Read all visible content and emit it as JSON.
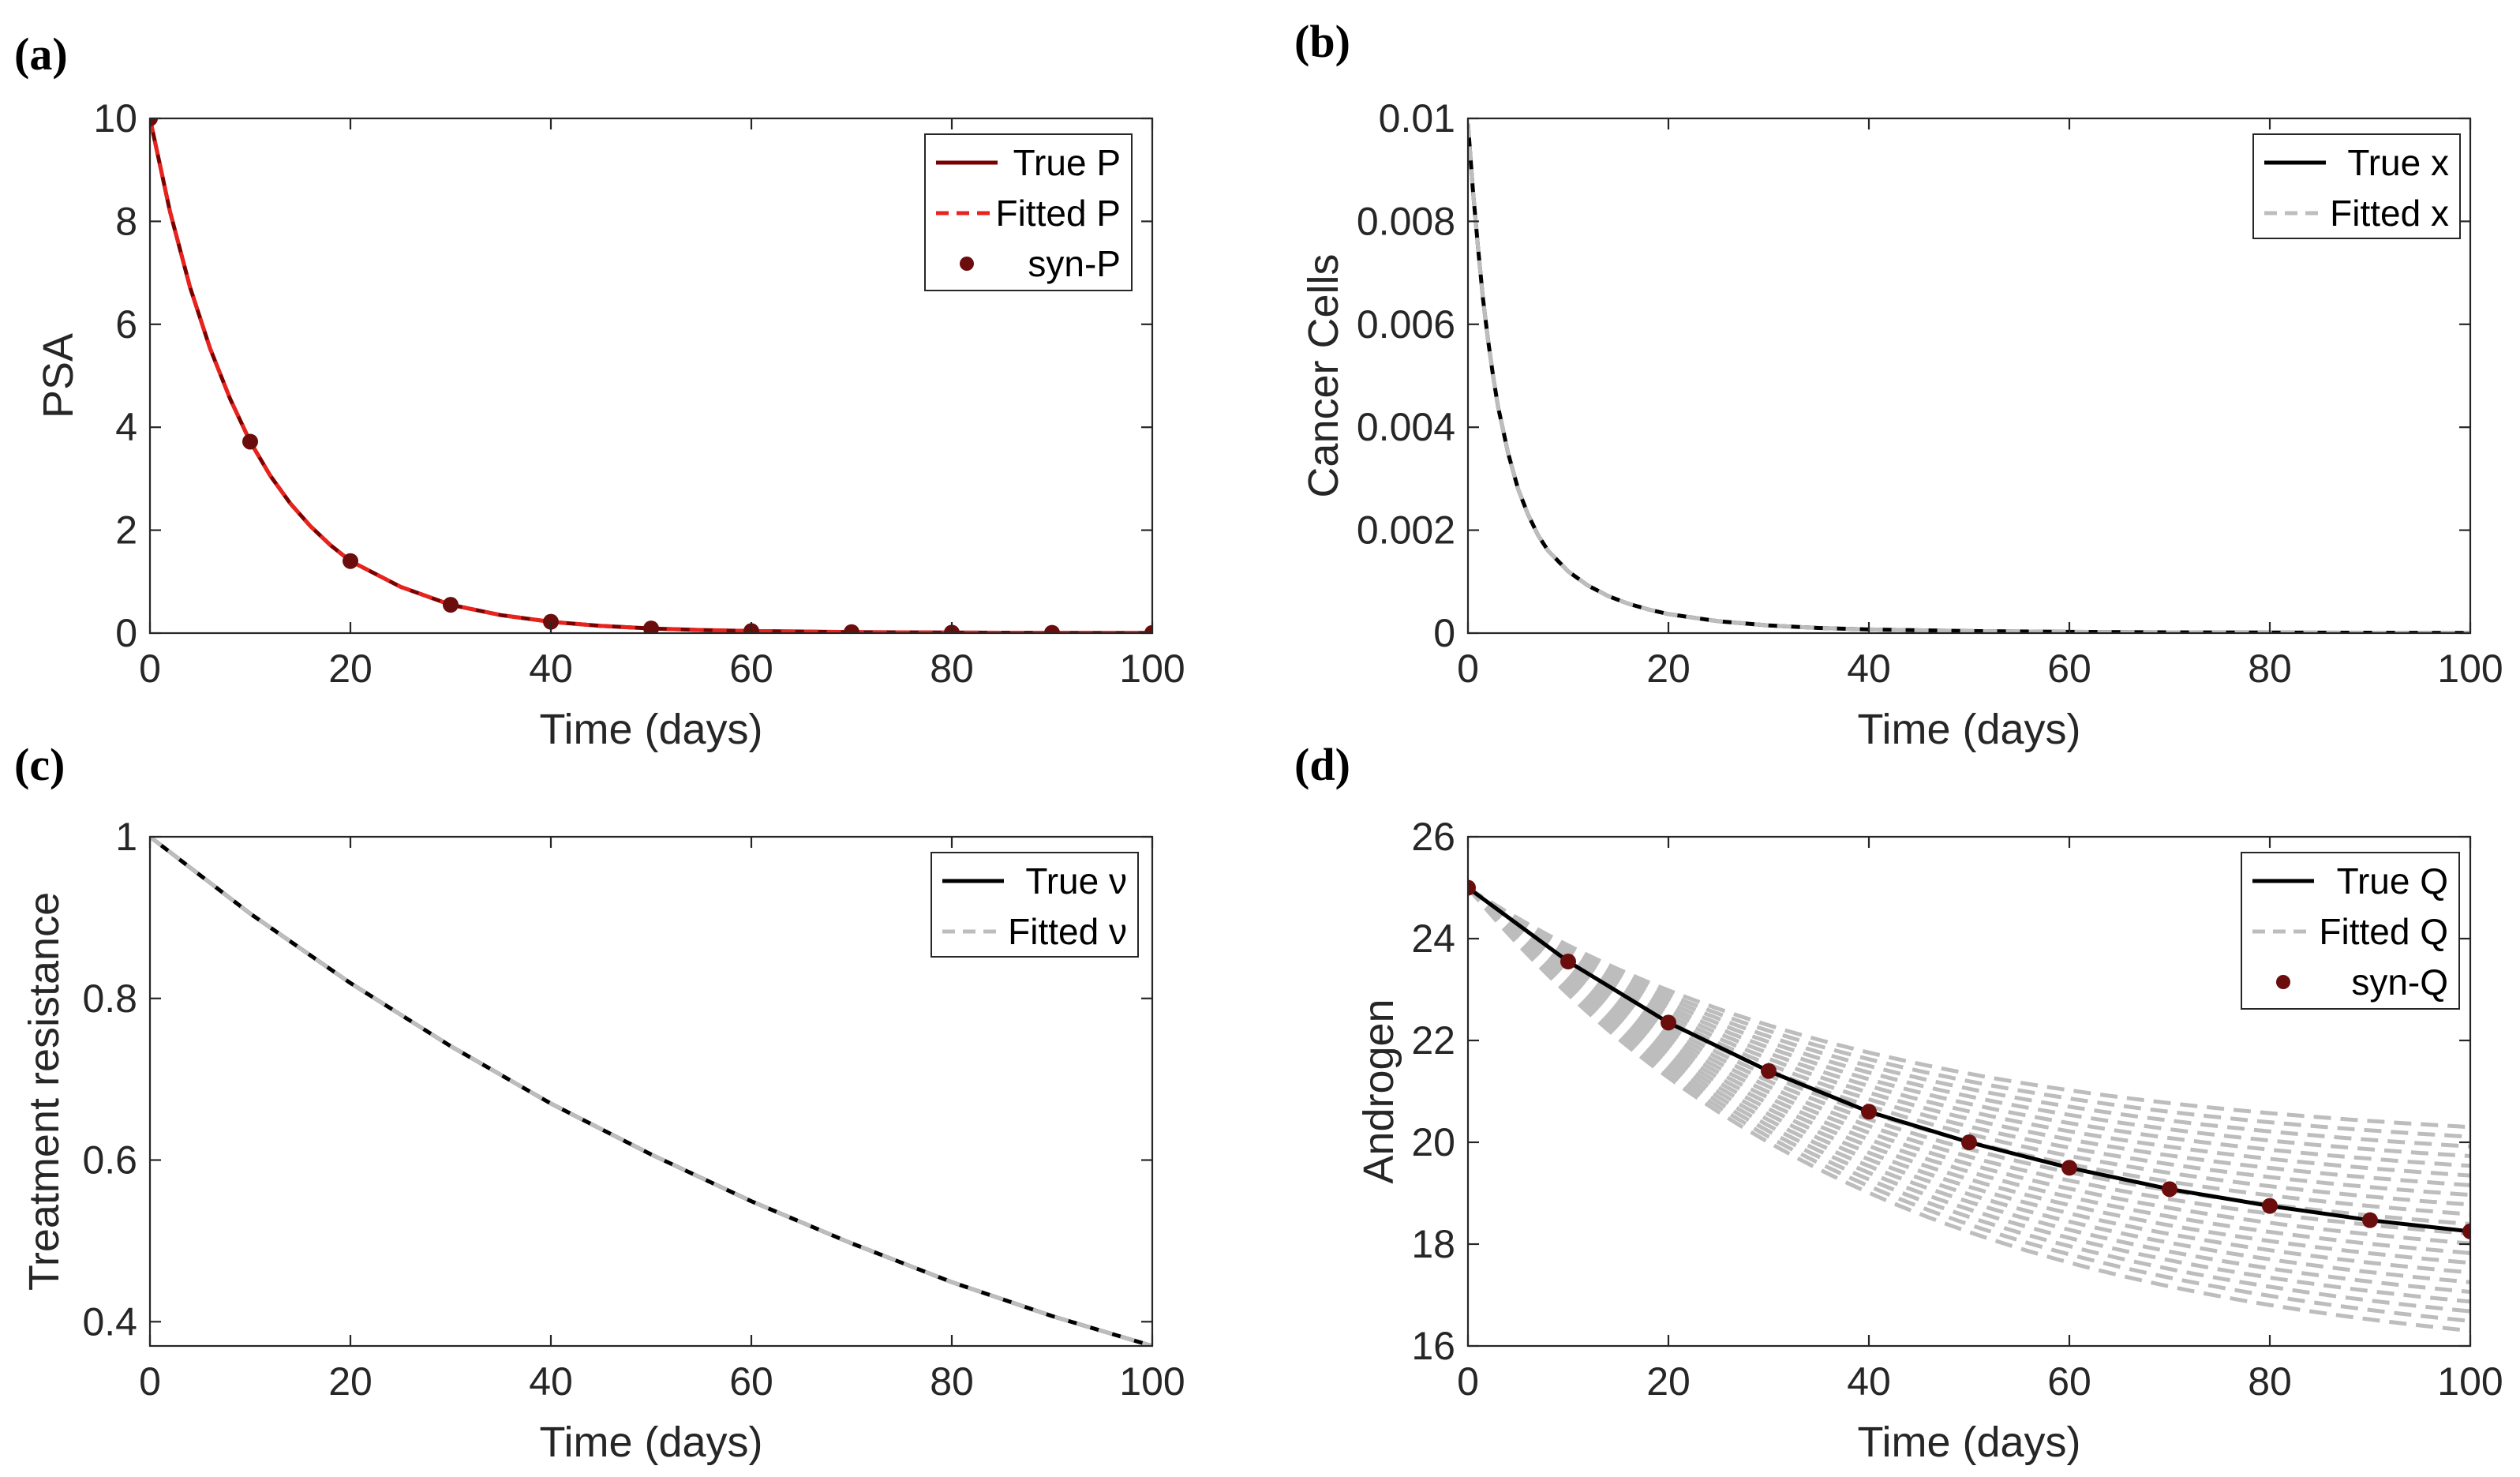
{
  "chart_data": [
    {
      "id": "a",
      "panel_label": "(a)",
      "type": "line",
      "xlabel": "Time (days)",
      "ylabel": "PSA",
      "xlim": [
        0,
        100
      ],
      "ylim": [
        0,
        10
      ],
      "xticks": [
        0,
        20,
        40,
        60,
        80,
        100
      ],
      "yticks": [
        0,
        2,
        4,
        6,
        8,
        10
      ],
      "ytick_labels": [
        "0",
        "2",
        "4",
        "6",
        "8",
        "10"
      ],
      "legend_position": "top-right",
      "series": [
        {
          "name": "True P",
          "label": "True P",
          "style": "solid",
          "color": "#7a0000",
          "x": [
            0,
            2,
            4,
            6,
            8,
            10,
            12,
            14,
            16,
            18,
            20,
            25,
            30,
            35,
            40,
            45,
            50,
            55,
            60,
            65,
            70,
            75,
            80,
            85,
            90,
            95,
            100
          ],
          "y": [
            10,
            8.19,
            6.72,
            5.53,
            4.55,
            3.72,
            3.06,
            2.52,
            2.08,
            1.71,
            1.4,
            0.9,
            0.55,
            0.35,
            0.22,
            0.14,
            0.09,
            0.06,
            0.04,
            0.03,
            0.02,
            0.015,
            0.01,
            0.008,
            0.006,
            0.005,
            0.004
          ]
        },
        {
          "name": "Fitted P",
          "label": "Fitted P",
          "style": "dashed",
          "color": "#e8231d",
          "x": [
            0,
            2,
            4,
            6,
            8,
            10,
            12,
            14,
            16,
            18,
            20,
            25,
            30,
            35,
            40,
            45,
            50,
            55,
            60,
            65,
            70,
            75,
            80,
            85,
            90,
            95,
            100
          ],
          "y": [
            10,
            8.19,
            6.72,
            5.53,
            4.55,
            3.72,
            3.06,
            2.52,
            2.08,
            1.71,
            1.4,
            0.9,
            0.55,
            0.35,
            0.22,
            0.14,
            0.09,
            0.06,
            0.04,
            0.03,
            0.02,
            0.015,
            0.01,
            0.008,
            0.006,
            0.005,
            0.004
          ]
        },
        {
          "name": "syn-P",
          "label": "syn-P",
          "style": "marker",
          "color": "#6b0d0d",
          "x": [
            0,
            10,
            20,
            30,
            40,
            50,
            60,
            70,
            80,
            90,
            100
          ],
          "y": [
            10,
            3.72,
            1.4,
            0.55,
            0.22,
            0.09,
            0.04,
            0.02,
            0.01,
            0.006,
            0.004
          ]
        }
      ]
    },
    {
      "id": "b",
      "panel_label": "(b)",
      "type": "line",
      "xlabel": "Time (days)",
      "ylabel": "Cancer Cells",
      "xlim": [
        0,
        100
      ],
      "ylim": [
        0,
        0.01
      ],
      "xticks": [
        0,
        20,
        40,
        60,
        80,
        100
      ],
      "yticks": [
        0,
        0.002,
        0.004,
        0.006,
        0.008,
        0.01
      ],
      "ytick_labels": [
        "0",
        "0.002",
        "0.004",
        "0.006",
        "0.008",
        "0.01"
      ],
      "legend_position": "top-right",
      "series": [
        {
          "name": "True x",
          "label": "True x",
          "style": "solid",
          "color": "#000000",
          "x": [
            0,
            0.5,
            1,
            1.5,
            2,
            2.5,
            3,
            4,
            5,
            6,
            7,
            8,
            10,
            12,
            14,
            16,
            18,
            20,
            25,
            30,
            35,
            40,
            50,
            60,
            70,
            80,
            90,
            100
          ],
          "y": [
            0.0099,
            0.0086,
            0.0075,
            0.0065,
            0.0057,
            0.005,
            0.0044,
            0.0035,
            0.0028,
            0.0023,
            0.0019,
            0.0016,
            0.0012,
            0.00092,
            0.00072,
            0.00057,
            0.00046,
            0.00037,
            0.00023,
            0.00015,
            0.0001,
            7e-05,
            4e-05,
            2.5e-05,
            1.6e-05,
            1e-05,
            7e-06,
            5e-06
          ]
        },
        {
          "name": "Fitted x",
          "label": "Fitted x",
          "style": "dashed",
          "color": "#bdbdbd",
          "x": [
            0,
            0.5,
            1,
            1.5,
            2,
            2.5,
            3,
            4,
            5,
            6,
            7,
            8,
            10,
            12,
            14,
            16,
            18,
            20,
            25,
            30,
            35,
            40,
            50,
            60,
            70,
            80,
            90,
            100
          ],
          "y": [
            0.0099,
            0.0086,
            0.0075,
            0.0065,
            0.0057,
            0.005,
            0.0044,
            0.0035,
            0.0028,
            0.0023,
            0.0019,
            0.0016,
            0.0012,
            0.00092,
            0.00072,
            0.00057,
            0.00046,
            0.00037,
            0.00023,
            0.00015,
            0.0001,
            7e-05,
            4e-05,
            2.5e-05,
            1.6e-05,
            1e-05,
            7e-06,
            5e-06
          ]
        }
      ]
    },
    {
      "id": "c",
      "panel_label": "(c)",
      "type": "line",
      "xlabel": "Time (days)",
      "ylabel": "Treatment resistance",
      "xlim": [
        0,
        100
      ],
      "ylim": [
        0.37,
        1
      ],
      "xticks": [
        0,
        20,
        40,
        60,
        80,
        100
      ],
      "yticks": [
        0.4,
        0.6,
        0.8,
        1
      ],
      "ytick_labels": [
        "0.4",
        "0.6",
        "0.8",
        "1"
      ],
      "legend_position": "top-right",
      "series": [
        {
          "name": "True ν",
          "label": "True ν",
          "style": "solid",
          "color": "#000000",
          "x": [
            0,
            10,
            20,
            30,
            40,
            50,
            60,
            70,
            80,
            90,
            100
          ],
          "y": [
            1,
            0.905,
            0.819,
            0.741,
            0.67,
            0.607,
            0.549,
            0.497,
            0.449,
            0.407,
            0.37
          ]
        },
        {
          "name": "Fitted ν",
          "label": "Fitted ν",
          "style": "dashed",
          "color": "#bdbdbd",
          "x": [
            0,
            10,
            20,
            30,
            40,
            50,
            60,
            70,
            80,
            90,
            100
          ],
          "y": [
            1,
            0.905,
            0.819,
            0.741,
            0.67,
            0.607,
            0.549,
            0.497,
            0.449,
            0.407,
            0.37
          ]
        }
      ]
    },
    {
      "id": "d",
      "panel_label": "(d)",
      "type": "line",
      "xlabel": "Time (days)",
      "ylabel": "Androgen",
      "xlim": [
        0,
        100
      ],
      "ylim": [
        16,
        26
      ],
      "xticks": [
        0,
        20,
        40,
        60,
        80,
        100
      ],
      "yticks": [
        16,
        18,
        20,
        22,
        24,
        26
      ],
      "ytick_labels": [
        "16",
        "18",
        "20",
        "22",
        "24",
        "26"
      ],
      "legend_position": "top-right",
      "fitted_band_final_values": {
        "min": 16.3,
        "max": 20.3
      },
      "series": [
        {
          "name": "True Q",
          "label": "True Q",
          "style": "solid",
          "color": "#000000",
          "x": [
            0,
            10,
            20,
            30,
            40,
            50,
            60,
            70,
            80,
            90,
            100
          ],
          "y": [
            25,
            23.55,
            22.35,
            21.4,
            20.6,
            20.0,
            19.5,
            19.08,
            18.75,
            18.47,
            18.25
          ]
        },
        {
          "name": "Fitted Q",
          "label": "Fitted Q",
          "style": "dashed",
          "color": "#bdbdbd",
          "x": [
            0,
            10,
            20,
            30,
            40,
            50,
            60,
            70,
            80,
            90,
            100
          ],
          "y": [
            25,
            23.55,
            22.35,
            21.4,
            20.6,
            20.0,
            19.5,
            19.08,
            18.75,
            18.47,
            18.25
          ]
        },
        {
          "name": "syn-Q",
          "label": "syn-Q",
          "style": "marker",
          "color": "#6b0d0d",
          "x": [
            0,
            10,
            20,
            30,
            40,
            50,
            60,
            70,
            80,
            90,
            100
          ],
          "y": [
            25,
            23.55,
            22.35,
            21.4,
            20.6,
            20.0,
            19.5,
            19.08,
            18.75,
            18.47,
            18.25
          ]
        }
      ]
    }
  ]
}
